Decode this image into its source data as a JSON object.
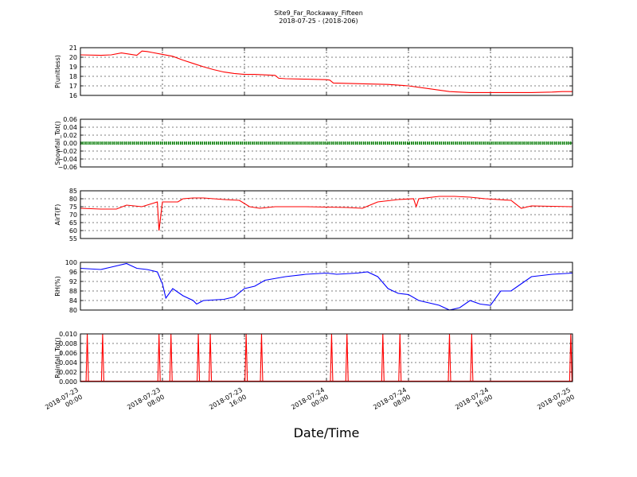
{
  "chart_data": {
    "type": "line",
    "title": "Site9_Far_Rockaway_Fifteen",
    "subtitle": "2018-07-25 - (2018-206)",
    "xlabel": "Date/Time",
    "x_range": [
      "2018-07-23 00:00",
      "2018-07-25 00:00"
    ],
    "x_ticks": [
      {
        "t": "2018-07-23 00:00",
        "line1": "2018-07-23",
        "line2": "00:00"
      },
      {
        "t": "2018-07-23 08:00",
        "line1": "2018-07-23",
        "line2": "08:00"
      },
      {
        "t": "2018-07-23 16:00",
        "line1": "2018-07-23",
        "line2": "16:00"
      },
      {
        "t": "2018-07-24 00:00",
        "line1": "2018-07-24",
        "line2": "00:00"
      },
      {
        "t": "2018-07-24 08:00",
        "line1": "2018-07-24",
        "line2": "08:00"
      },
      {
        "t": "2018-07-24 16:00",
        "line1": "2018-07-24",
        "line2": "16:00"
      },
      {
        "t": "2018-07-25 00:00",
        "line1": "2018-07-25",
        "line2": "00:00"
      }
    ],
    "grid": true,
    "panels": [
      {
        "ylabel": "P(unitless)",
        "ylim": [
          16,
          21
        ],
        "yticks": [
          "16",
          "17",
          "18",
          "19",
          "20",
          "21"
        ],
        "color": "#ff0000",
        "style": "line",
        "x": [
          "2018-07-23 00:00",
          "2018-07-23 02:00",
          "2018-07-23 03:00",
          "2018-07-23 04:00",
          "2018-07-23 05:30",
          "2018-07-23 06:00",
          "2018-07-23 06:30",
          "2018-07-23 07:00",
          "2018-07-23 08:00",
          "2018-07-23 09:00",
          "2018-07-23 10:00",
          "2018-07-23 11:00",
          "2018-07-23 12:00",
          "2018-07-23 13:00",
          "2018-07-23 14:00",
          "2018-07-23 15:00",
          "2018-07-23 16:00",
          "2018-07-23 17:00",
          "2018-07-23 18:00",
          "2018-07-23 19:00",
          "2018-07-23 19:20",
          "2018-07-23 20:00",
          "2018-07-23 22:00",
          "2018-07-24 00:00",
          "2018-07-24 00:20",
          "2018-07-24 00:40",
          "2018-07-24 04:00",
          "2018-07-24 06:00",
          "2018-07-24 08:00",
          "2018-07-24 10:00",
          "2018-07-24 12:00",
          "2018-07-24 14:00",
          "2018-07-24 16:00",
          "2018-07-24 20:00",
          "2018-07-24 22:00",
          "2018-07-24 23:00",
          "2018-07-25 00:00"
        ],
        "values": [
          20.25,
          20.2,
          20.25,
          20.45,
          20.2,
          20.65,
          20.6,
          20.5,
          20.3,
          20.1,
          19.7,
          19.35,
          19.0,
          18.7,
          18.45,
          18.3,
          18.2,
          18.2,
          18.15,
          18.1,
          17.8,
          17.75,
          17.7,
          17.65,
          17.6,
          17.3,
          17.2,
          17.15,
          17.0,
          16.7,
          16.4,
          16.3,
          16.3,
          16.3,
          16.35,
          16.4,
          16.4
        ]
      },
      {
        "ylabel": "Snowfall_Tot()",
        "ylim": [
          -0.06,
          0.06
        ],
        "yticks": [
          "−0.06",
          "−0.04",
          "−0.02",
          "0.00",
          "0.02",
          "0.04",
          "0.06"
        ],
        "color": "#008000",
        "style": "dots",
        "x": [
          "2018-07-23 00:00",
          "2018-07-25 00:00"
        ],
        "values": [
          0,
          0
        ]
      },
      {
        "ylabel": "AirT(F)",
        "ylim": [
          55,
          85
        ],
        "yticks": [
          "55",
          "60",
          "65",
          "70",
          "75",
          "80",
          "85"
        ],
        "color": "#ff0000",
        "style": "line",
        "x": [
          "2018-07-23 00:00",
          "2018-07-23 02:00",
          "2018-07-23 03:30",
          "2018-07-23 04:30",
          "2018-07-23 06:00",
          "2018-07-23 07:30",
          "2018-07-23 07:40",
          "2018-07-23 08:00",
          "2018-07-23 08:20",
          "2018-07-23 09:30",
          "2018-07-23 10:00",
          "2018-07-23 11:00",
          "2018-07-23 12:00",
          "2018-07-23 13:00",
          "2018-07-23 14:00",
          "2018-07-23 15:30",
          "2018-07-23 16:30",
          "2018-07-23 17:30",
          "2018-07-23 19:00",
          "2018-07-23 22:00",
          "2018-07-24 02:00",
          "2018-07-24 03:30",
          "2018-07-24 05:00",
          "2018-07-24 07:00",
          "2018-07-24 08:30",
          "2018-07-24 08:45",
          "2018-07-24 09:00",
          "2018-07-24 11:00",
          "2018-07-24 12:30",
          "2018-07-24 14:00",
          "2018-07-24 15:30",
          "2018-07-24 18:00",
          "2018-07-24 19:00",
          "2018-07-24 20:00",
          "2018-07-25 00:00"
        ],
        "values": [
          74,
          73.5,
          73.5,
          76,
          75,
          78,
          60,
          78,
          78,
          78,
          80,
          80.5,
          80.5,
          80,
          79.5,
          79,
          75,
          74,
          75,
          75,
          74.5,
          74,
          78,
          79.5,
          80,
          75,
          80,
          81.5,
          81.5,
          81,
          80,
          79,
          74,
          75.5,
          75
        ]
      },
      {
        "ylabel": "RH(%)",
        "ylim": [
          80,
          100
        ],
        "yticks": [
          "80",
          "84",
          "88",
          "92",
          "96",
          "100"
        ],
        "color": "#0000ff",
        "style": "line",
        "x": [
          "2018-07-23 00:00",
          "2018-07-23 02:00",
          "2018-07-23 03:00",
          "2018-07-23 04:30",
          "2018-07-23 05:30",
          "2018-07-23 06:30",
          "2018-07-23 07:30",
          "2018-07-23 08:00",
          "2018-07-23 08:20",
          "2018-07-23 09:00",
          "2018-07-23 10:00",
          "2018-07-23 11:00",
          "2018-07-23 11:20",
          "2018-07-23 12:00",
          "2018-07-23 14:00",
          "2018-07-23 15:00",
          "2018-07-23 16:00",
          "2018-07-23 17:00",
          "2018-07-23 18:00",
          "2018-07-23 20:00",
          "2018-07-23 22:00",
          "2018-07-24 00:00",
          "2018-07-24 01:00",
          "2018-07-24 03:00",
          "2018-07-24 04:00",
          "2018-07-24 05:00",
          "2018-07-24 06:00",
          "2018-07-24 07:00",
          "2018-07-24 08:00",
          "2018-07-24 09:00",
          "2018-07-24 10:00",
          "2018-07-24 11:00",
          "2018-07-24 12:00",
          "2018-07-24 13:00",
          "2018-07-24 14:00",
          "2018-07-24 15:00",
          "2018-07-24 16:00",
          "2018-07-24 17:00",
          "2018-07-24 18:00",
          "2018-07-24 19:00",
          "2018-07-24 20:00",
          "2018-07-24 22:00",
          "2018-07-25 00:00"
        ],
        "values": [
          97.5,
          97,
          98,
          99.5,
          97.5,
          97,
          96,
          91,
          85,
          89,
          86,
          84,
          82.5,
          84,
          84.5,
          85.5,
          89,
          90,
          92.5,
          94,
          95,
          95.5,
          95,
          95.5,
          96,
          94,
          89,
          87,
          86.5,
          84,
          83,
          82,
          80,
          81,
          84,
          82.5,
          82,
          88,
          88,
          91,
          94,
          95,
          95.5
        ]
      },
      {
        "ylabel": "Rainfall_Tot()",
        "ylim": [
          0,
          0.01
        ],
        "yticks": [
          "0.000",
          "0.002",
          "0.004",
          "0.006",
          "0.008",
          "0.010"
        ],
        "color": "#ff0000",
        "style": "spikes",
        "x": [
          "2018-07-23 00:40",
          "2018-07-23 02:10",
          "2018-07-23 07:40",
          "2018-07-23 08:50",
          "2018-07-23 11:30",
          "2018-07-23 12:40",
          "2018-07-23 16:10",
          "2018-07-23 17:40",
          "2018-07-24 02:00",
          "2018-07-24 00:30",
          "2018-07-24 05:30",
          "2018-07-24 07:10",
          "2018-07-24 12:00",
          "2018-07-24 14:10",
          "2018-07-24 23:50"
        ],
        "values": [
          0.01,
          0.01,
          0.01,
          0.01,
          0.01,
          0.01,
          0.01,
          0.01,
          0.01,
          0.01,
          0.01,
          0.01,
          0.01,
          0.01,
          0.01
        ]
      }
    ]
  }
}
